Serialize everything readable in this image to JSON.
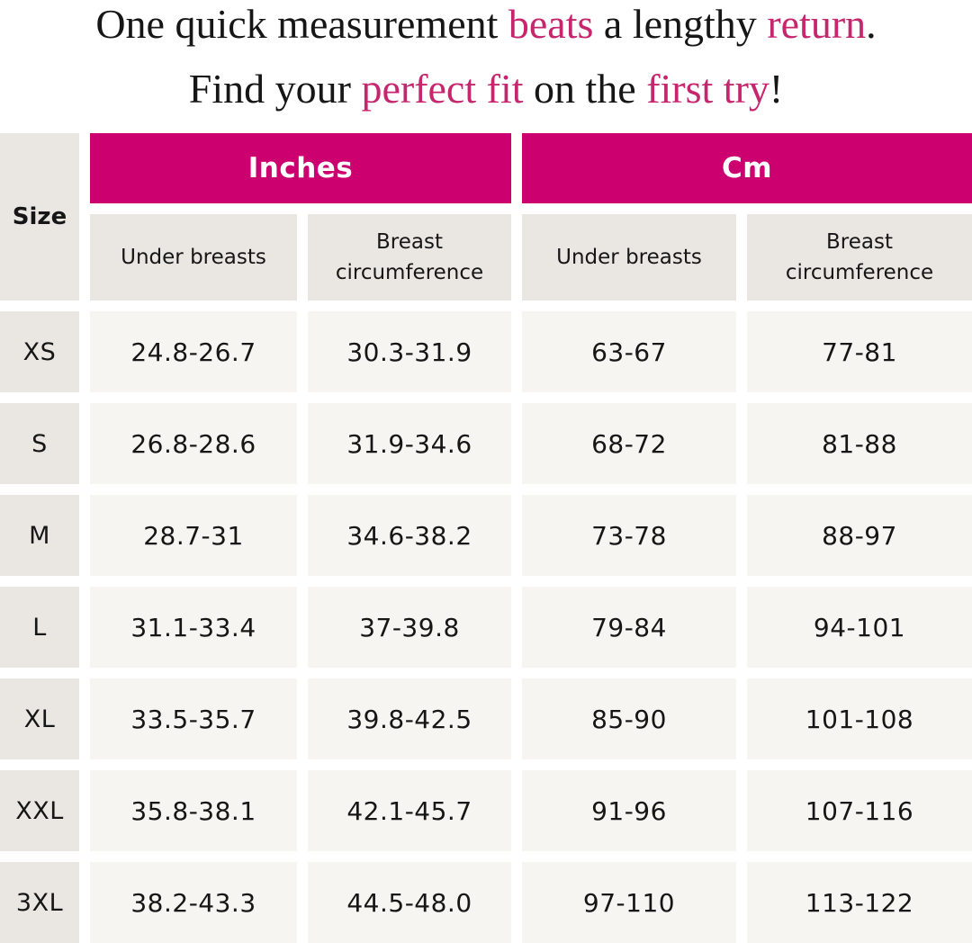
{
  "title": {
    "line1": [
      {
        "text": "One quick measurement "
      },
      {
        "text": "beats",
        "highlight": true
      },
      {
        "text": " a lengthy "
      },
      {
        "text": "return",
        "highlight": true
      },
      {
        "text": "."
      }
    ],
    "line2": [
      {
        "text": "Find your "
      },
      {
        "text": "perfect fit",
        "highlight": true
      },
      {
        "text": " on the "
      },
      {
        "text": "first try",
        "highlight": true
      },
      {
        "text": "!"
      }
    ]
  },
  "table": {
    "corner_label": "Size",
    "unit_headers": [
      {
        "label": "Inches"
      },
      {
        "label": "Cm"
      }
    ],
    "measure_headers": [
      "Under breasts",
      "Breast circumference",
      "Under breasts",
      "Breast circumference"
    ],
    "rows": [
      {
        "size": "XS",
        "values": [
          "24.8-26.7",
          "30.3-31.9",
          "63-67",
          "77-81"
        ]
      },
      {
        "size": "S",
        "values": [
          "26.8-28.6",
          "31.9-34.6",
          "68-72",
          "81-88"
        ]
      },
      {
        "size": "M",
        "values": [
          "28.7-31",
          "34.6-38.2",
          "73-78",
          "88-97"
        ]
      },
      {
        "size": "L",
        "values": [
          "31.1-33.4",
          "37-39.8",
          "79-84",
          "94-101"
        ]
      },
      {
        "size": "XL",
        "values": [
          "33.5-35.7",
          "39.8-42.5",
          "85-90",
          "101-108"
        ]
      },
      {
        "size": "XXL",
        "values": [
          "35.8-38.1",
          "42.1-45.7",
          "91-96",
          "107-116"
        ]
      },
      {
        "size": "3XL",
        "values": [
          "38.2-43.3",
          "44.5-48.0",
          "97-110",
          "113-122"
        ]
      }
    ]
  },
  "colors": {
    "accent-pink": "#CD0070",
    "headline-pink": "#C5266E",
    "cell-gray": "#EAE7E3",
    "cell-cream": "#F7F5F2",
    "text-dark": "#161616"
  }
}
